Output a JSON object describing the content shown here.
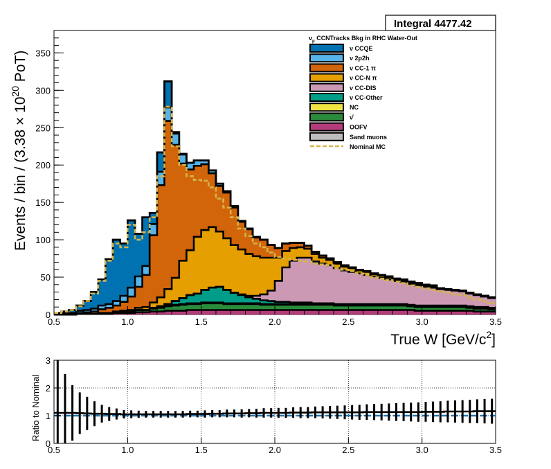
{
  "integral_box": "Integral 4477.42",
  "legend_title": "ν_μ CCNTracks Bkg in RHC Water-Out",
  "legend_title_parts": {
    "nu": "ν",
    "sub": "μ",
    "rest": " CCNTracks Bkg in RHC Water-Out"
  },
  "chart_data": [
    {
      "type": "area",
      "subtype": "stacked-histogram",
      "xlabel": "True W [GeV/c ²]",
      "xlabel_parts": {
        "main": "True W [GeV/c",
        "sup": "2",
        "close": "]"
      },
      "ylabel": "Events / bin / (3.38 × 10^20 PoT)",
      "ylabel_parts": {
        "a": "Events / bin / (3.38  × 10",
        "sup": "20",
        "b": " PoT)"
      },
      "xlim": [
        0.5,
        3.5
      ],
      "ylim": [
        0,
        380
      ],
      "xticks": [
        "0.5",
        "1.0",
        "1.5",
        "2.0",
        "2.5",
        "3.0",
        "3.5"
      ],
      "yticks": [
        "0",
        "50",
        "100",
        "150",
        "200",
        "250",
        "300",
        "350"
      ],
      "bin_width": 0.05,
      "x_low_edges": [
        0.5,
        0.55,
        0.6,
        0.65,
        0.7,
        0.75,
        0.8,
        0.85,
        0.9,
        0.95,
        1.0,
        1.05,
        1.1,
        1.15,
        1.2,
        1.25,
        1.3,
        1.35,
        1.4,
        1.45,
        1.5,
        1.55,
        1.6,
        1.65,
        1.7,
        1.75,
        1.8,
        1.85,
        1.9,
        1.95,
        2.0,
        2.05,
        2.1,
        2.15,
        2.2,
        2.25,
        2.3,
        2.35,
        2.4,
        2.45,
        2.5,
        2.55,
        2.6,
        2.65,
        2.7,
        2.75,
        2.8,
        2.85,
        2.9,
        2.95,
        3.0,
        3.05,
        3.1,
        3.15,
        3.2,
        3.25,
        3.3,
        3.35,
        3.4,
        3.45
      ],
      "series": [
        {
          "name": "OOFV",
          "color": "#b43c7a",
          "values": [
            0,
            0,
            0,
            1,
            1,
            1,
            1,
            1,
            2,
            2,
            2,
            3,
            3,
            4,
            4,
            5,
            5,
            5,
            6,
            6,
            6,
            6,
            6,
            6,
            6,
            6,
            6,
            6,
            6,
            6,
            6,
            6,
            6,
            6,
            6,
            6,
            6,
            6,
            6,
            6,
            6,
            6,
            6,
            6,
            6,
            6,
            6,
            6,
            6,
            5,
            5,
            5,
            5,
            5,
            5,
            5,
            5,
            4,
            4,
            4
          ]
        },
        {
          "name": "ν̄",
          "color": "#2a8c3a",
          "values": [
            0,
            0,
            0,
            0,
            0,
            0,
            1,
            1,
            1,
            2,
            2,
            3,
            3,
            4,
            5,
            6,
            7,
            8,
            8,
            8,
            9,
            9,
            9,
            8,
            8,
            8,
            8,
            8,
            7,
            7,
            7,
            7,
            7,
            7,
            7,
            7,
            7,
            7,
            6,
            6,
            6,
            6,
            6,
            6,
            6,
            6,
            6,
            6,
            5,
            5,
            5,
            5,
            5,
            5,
            5,
            5,
            4,
            4,
            4,
            3
          ]
        },
        {
          "name": "NC",
          "color": "#f0e442",
          "values": [
            0,
            0,
            0,
            0,
            0,
            0,
            0,
            0,
            0,
            0,
            0,
            0,
            0,
            1,
            1,
            1,
            1,
            1,
            1,
            1,
            1,
            1,
            1,
            1,
            1,
            1,
            1,
            1,
            1,
            1,
            1,
            1,
            1,
            1,
            1,
            1,
            1,
            1,
            1,
            1,
            1,
            1,
            1,
            1,
            1,
            1,
            1,
            1,
            1,
            1,
            1,
            1,
            1,
            1,
            1,
            1,
            1,
            1,
            1,
            1
          ]
        },
        {
          "name": "ν CC-Other",
          "color": "#009e89",
          "values": [
            0,
            0,
            0,
            0,
            0,
            0,
            0,
            0,
            0,
            0,
            0,
            0,
            0,
            0,
            1,
            2,
            5,
            8,
            11,
            13,
            17,
            20,
            21,
            18,
            14,
            11,
            8,
            6,
            5,
            4,
            3,
            3,
            2,
            2,
            2,
            1,
            1,
            1,
            1,
            1,
            1,
            1,
            1,
            1,
            1,
            1,
            1,
            1,
            1,
            1,
            1,
            1,
            1,
            1,
            1,
            1,
            1,
            1,
            1,
            1
          ]
        },
        {
          "name": "ν CC-DIS",
          "color": "#cc99b4",
          "values": [
            0,
            0,
            0,
            0,
            0,
            0,
            0,
            0,
            0,
            0,
            0,
            0,
            0,
            0,
            0,
            0,
            0,
            0,
            0,
            0,
            0,
            0,
            0,
            0,
            0,
            1,
            2,
            4,
            8,
            14,
            28,
            46,
            56,
            60,
            60,
            56,
            53,
            51,
            48,
            45,
            43,
            41,
            39,
            37,
            35,
            33,
            31,
            30,
            28,
            27,
            25,
            24,
            22,
            21,
            20,
            19,
            17,
            16,
            14,
            13
          ]
        },
        {
          "name": "ν CC-N π",
          "color": "#e69f00",
          "values": [
            0,
            0,
            0,
            0,
            0,
            0,
            0,
            0,
            1,
            1,
            2,
            3,
            4,
            7,
            12,
            20,
            31,
            50,
            60,
            76,
            80,
            81,
            74,
            69,
            64,
            60,
            56,
            53,
            49,
            44,
            31,
            22,
            17,
            14,
            12,
            10,
            8,
            7,
            6,
            5,
            5,
            4,
            4,
            3,
            3,
            3,
            2,
            2,
            2,
            2,
            2,
            2,
            1,
            1,
            1,
            1,
            1,
            1,
            1,
            1
          ]
        },
        {
          "name": "ν CC-1 π",
          "color": "#d2640a",
          "values": [
            0,
            0,
            0,
            1,
            2,
            3,
            5,
            7,
            8,
            12,
            18,
            28,
            43,
            90,
            150,
            225,
            178,
            130,
            108,
            95,
            88,
            72,
            61,
            61,
            50,
            37,
            33,
            25,
            24,
            17,
            13,
            10,
            7,
            6,
            4,
            3,
            3,
            2,
            2,
            2,
            1,
            1,
            1,
            1,
            1,
            1,
            1,
            1,
            1,
            1,
            1,
            1,
            0,
            0,
            0,
            0,
            0,
            0,
            0,
            0
          ]
        },
        {
          "name": "ν 2p2h",
          "color": "#56b4e9",
          "values": [
            1,
            2,
            2,
            3,
            3,
            4,
            5,
            5,
            6,
            8,
            12,
            14,
            12,
            15,
            18,
            18,
            15,
            12,
            9,
            7,
            5,
            4,
            3,
            2,
            2,
            1,
            1,
            1,
            0,
            0,
            0,
            0,
            0,
            0,
            0,
            0,
            0,
            0,
            0,
            0,
            0,
            0,
            0,
            0,
            0,
            0,
            0,
            0,
            0,
            0,
            0,
            0,
            0,
            0,
            0,
            0,
            0,
            0,
            0,
            0
          ]
        },
        {
          "name": "ν CCQE",
          "color": "#0072b2",
          "values": [
            1,
            2,
            4,
            7,
            12,
            22,
            35,
            60,
            82,
            70,
            90,
            57,
            65,
            15,
            26,
            35,
            2,
            1,
            0,
            0,
            0,
            0,
            0,
            0,
            0,
            0,
            0,
            0,
            0,
            0,
            0,
            0,
            0,
            0,
            0,
            0,
            0,
            0,
            0,
            0,
            0,
            0,
            0,
            0,
            0,
            0,
            0,
            0,
            0,
            0,
            0,
            0,
            0,
            0,
            0,
            0,
            0,
            0,
            0,
            0
          ]
        },
        {
          "name": "Sand muons",
          "color": "#bdbdbd",
          "values": [
            0,
            0,
            0,
            0,
            0,
            0,
            0,
            0,
            0,
            0,
            0,
            0,
            0,
            0,
            0,
            0,
            0,
            0,
            0,
            0,
            0,
            0,
            0,
            0,
            0,
            0,
            0,
            0,
            0,
            0,
            0,
            0,
            0,
            0,
            0,
            0,
            0,
            0,
            0,
            0,
            0,
            0,
            0,
            0,
            0,
            0,
            0,
            0,
            0,
            0,
            0,
            0,
            0,
            0,
            0,
            0,
            0,
            0,
            0,
            0
          ]
        }
      ],
      "nominal_mc": {
        "name": "Nominal MC",
        "color": "#d4b44a",
        "values": [
          2,
          4,
          6,
          11,
          18,
          28,
          45,
          72,
          95,
          90,
          120,
          100,
          110,
          130,
          185,
          278,
          225,
          200,
          185,
          180,
          179,
          170,
          155,
          143,
          130,
          115,
          105,
          95,
          90,
          83,
          77,
          75,
          73,
          72,
          71,
          68,
          67,
          66,
          62,
          60,
          58,
          55,
          53,
          50,
          48,
          46,
          44,
          42,
          39,
          37,
          35,
          33,
          31,
          29,
          27,
          26,
          23,
          20,
          18,
          15
        ]
      }
    },
    {
      "type": "line",
      "subtype": "ratio-with-errors",
      "ylabel": "Ratio to Nominal",
      "xlim": [
        0.5,
        3.5
      ],
      "ylim": [
        0,
        3
      ],
      "xticks": [
        "0.5",
        "1.0",
        "1.5",
        "2.0",
        "2.5",
        "3.0",
        "3.5"
      ],
      "yticks": [
        "0",
        "1",
        "2",
        "3"
      ],
      "reference": 1,
      "reference_color": "#1f77b4",
      "ratio": [
        1.1,
        1.1,
        1.1,
        1.09,
        1.08,
        1.07,
        1.07,
        1.06,
        1.06,
        1.05,
        1.05,
        1.05,
        1.05,
        1.05,
        1.05,
        1.05,
        1.05,
        1.05,
        1.06,
        1.06,
        1.06,
        1.07,
        1.07,
        1.08,
        1.08,
        1.08,
        1.09,
        1.09,
        1.1,
        1.1,
        1.1,
        1.1,
        1.11,
        1.11,
        1.11,
        1.12,
        1.12,
        1.12,
        1.12,
        1.12,
        1.12,
        1.12,
        1.13,
        1.13,
        1.13,
        1.13,
        1.13,
        1.13,
        1.13,
        1.13,
        1.14,
        1.14,
        1.14,
        1.15,
        1.15,
        1.15,
        1.15,
        1.16,
        1.16,
        1.16
      ],
      "error": [
        2.0,
        1.4,
        1.0,
        0.75,
        0.6,
        0.45,
        0.32,
        0.25,
        0.2,
        0.15,
        0.14,
        0.13,
        0.12,
        0.12,
        0.12,
        0.12,
        0.12,
        0.12,
        0.12,
        0.12,
        0.13,
        0.13,
        0.13,
        0.14,
        0.14,
        0.15,
        0.15,
        0.16,
        0.17,
        0.17,
        0.18,
        0.18,
        0.19,
        0.2,
        0.2,
        0.21,
        0.22,
        0.23,
        0.24,
        0.25,
        0.26,
        0.27,
        0.28,
        0.29,
        0.3,
        0.31,
        0.32,
        0.33,
        0.34,
        0.35,
        0.36,
        0.37,
        0.38,
        0.39,
        0.4,
        0.41,
        0.42,
        0.43,
        0.44,
        0.45
      ]
    }
  ]
}
